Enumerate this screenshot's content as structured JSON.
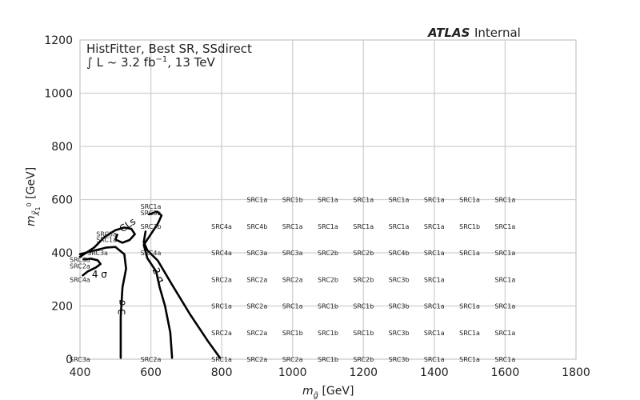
{
  "chart_data": {
    "type": "scatter",
    "title": "",
    "experiment_label": "ATLAS",
    "experiment_status": "Internal",
    "info_line1": "HistFitter, Best SR, SSdirect",
    "info_line2_prefix": "∫ L ~ 3.2 fb",
    "info_line2_exp": "−1",
    "info_line2_suffix": ", 13 TeV",
    "xlabel_main": "m",
    "xlabel_sub": "g̃",
    "xlabel_unit": " [GeV]",
    "ylabel_main": "m",
    "ylabel_sub": "χ̃",
    "ylabel_subsub": "1",
    "ylabel_sup": "0",
    "ylabel_unit": " [GeV]",
    "xlim": [
      400,
      1800
    ],
    "ylim": [
      0,
      1200
    ],
    "x_ticks": [
      400,
      600,
      800,
      1000,
      1200,
      1400,
      1600,
      1800
    ],
    "x_tick_labels": [
      "400",
      "600",
      "800",
      "1000",
      "1200",
      "1400",
      "1600",
      "1800"
    ],
    "y_ticks": [
      0,
      200,
      400,
      600,
      800,
      1000,
      1200
    ],
    "y_tick_labels": [
      "0",
      "200",
      "400",
      "600",
      "800",
      "1000",
      "1200"
    ],
    "grid": true,
    "points": [
      {
        "x": 400,
        "y": 0,
        "label": "SRC3a"
      },
      {
        "x": 600,
        "y": 0,
        "label": "SRC2a"
      },
      {
        "x": 800,
        "y": 0,
        "label": "SRC1a"
      },
      {
        "x": 900,
        "y": 0,
        "label": "SRC2a"
      },
      {
        "x": 1000,
        "y": 0,
        "label": "SRC2a"
      },
      {
        "x": 1100,
        "y": 0,
        "label": "SRC1b"
      },
      {
        "x": 1200,
        "y": 0,
        "label": "SRC2b"
      },
      {
        "x": 1300,
        "y": 0,
        "label": "SRC3b"
      },
      {
        "x": 1400,
        "y": 0,
        "label": "SRC1a"
      },
      {
        "x": 1500,
        "y": 0,
        "label": "SRC1a"
      },
      {
        "x": 1600,
        "y": 0,
        "label": "SRC1a"
      },
      {
        "x": 800,
        "y": 100,
        "label": "SRC2a"
      },
      {
        "x": 900,
        "y": 100,
        "label": "SRC2a"
      },
      {
        "x": 1000,
        "y": 100,
        "label": "SRC1b"
      },
      {
        "x": 1100,
        "y": 100,
        "label": "SRC1b"
      },
      {
        "x": 1200,
        "y": 100,
        "label": "SRC1b"
      },
      {
        "x": 1300,
        "y": 100,
        "label": "SRC3b"
      },
      {
        "x": 1400,
        "y": 100,
        "label": "SRC1a"
      },
      {
        "x": 1500,
        "y": 100,
        "label": "SRC1a"
      },
      {
        "x": 1600,
        "y": 100,
        "label": "SRC1a"
      },
      {
        "x": 800,
        "y": 200,
        "label": "SRC1a"
      },
      {
        "x": 900,
        "y": 200,
        "label": "SRC2a"
      },
      {
        "x": 1000,
        "y": 200,
        "label": "SRC1a"
      },
      {
        "x": 1100,
        "y": 200,
        "label": "SRC1b"
      },
      {
        "x": 1200,
        "y": 200,
        "label": "SRC1b"
      },
      {
        "x": 1300,
        "y": 200,
        "label": "SRC3b"
      },
      {
        "x": 1400,
        "y": 200,
        "label": "SRC1a"
      },
      {
        "x": 1500,
        "y": 200,
        "label": "SRC1a"
      },
      {
        "x": 1600,
        "y": 200,
        "label": "SRC1a"
      },
      {
        "x": 800,
        "y": 300,
        "label": "SRC2a"
      },
      {
        "x": 900,
        "y": 300,
        "label": "SRC2a"
      },
      {
        "x": 1000,
        "y": 300,
        "label": "SRC2a"
      },
      {
        "x": 1100,
        "y": 300,
        "label": "SRC2b"
      },
      {
        "x": 1200,
        "y": 300,
        "label": "SRC2b"
      },
      {
        "x": 1300,
        "y": 300,
        "label": "SRC3b"
      },
      {
        "x": 1400,
        "y": 300,
        "label": "SRC1a"
      },
      {
        "x": 1600,
        "y": 300,
        "label": "SRC1a"
      },
      {
        "x": 400,
        "y": 300,
        "label": "SRC4a"
      },
      {
        "x": 400,
        "y": 350,
        "label": "SRC2a"
      },
      {
        "x": 400,
        "y": 375,
        "label": "SRC3a"
      },
      {
        "x": 450,
        "y": 400,
        "label": "SRC3a"
      },
      {
        "x": 600,
        "y": 400,
        "label": "SRC4a"
      },
      {
        "x": 800,
        "y": 400,
        "label": "SRC4a"
      },
      {
        "x": 900,
        "y": 400,
        "label": "SRC3a"
      },
      {
        "x": 1000,
        "y": 400,
        "label": "SRC3a"
      },
      {
        "x": 1100,
        "y": 400,
        "label": "SRC2b"
      },
      {
        "x": 1200,
        "y": 400,
        "label": "SRC2b"
      },
      {
        "x": 1300,
        "y": 400,
        "label": "SRC4b"
      },
      {
        "x": 1400,
        "y": 400,
        "label": "SRC1a"
      },
      {
        "x": 1500,
        "y": 400,
        "label": "SRC1a"
      },
      {
        "x": 1600,
        "y": 400,
        "label": "SRC1a"
      },
      {
        "x": 475,
        "y": 450,
        "label": "SRC1a"
      },
      {
        "x": 475,
        "y": 470,
        "label": "SRC3a"
      },
      {
        "x": 600,
        "y": 500,
        "label": "SRC3b"
      },
      {
        "x": 800,
        "y": 500,
        "label": "SRC4a"
      },
      {
        "x": 900,
        "y": 500,
        "label": "SRC4b"
      },
      {
        "x": 1000,
        "y": 500,
        "label": "SRC1a"
      },
      {
        "x": 1100,
        "y": 500,
        "label": "SRC1a"
      },
      {
        "x": 1200,
        "y": 500,
        "label": "SRC1a"
      },
      {
        "x": 1300,
        "y": 500,
        "label": "SRC1a"
      },
      {
        "x": 1400,
        "y": 500,
        "label": "SRC1a"
      },
      {
        "x": 1500,
        "y": 500,
        "label": "SRC1b"
      },
      {
        "x": 1600,
        "y": 500,
        "label": "SRC1a"
      },
      {
        "x": 600,
        "y": 550,
        "label": "SRC3a"
      },
      {
        "x": 600,
        "y": 575,
        "label": "SRC1a"
      },
      {
        "x": 900,
        "y": 600,
        "label": "SRC1a"
      },
      {
        "x": 1000,
        "y": 600,
        "label": "SRC1b"
      },
      {
        "x": 1100,
        "y": 600,
        "label": "SRC1a"
      },
      {
        "x": 1200,
        "y": 600,
        "label": "SRC1a"
      },
      {
        "x": 1300,
        "y": 600,
        "label": "SRC1a"
      },
      {
        "x": 1400,
        "y": 600,
        "label": "SRC1a"
      },
      {
        "x": 1500,
        "y": 600,
        "label": "SRC1a"
      },
      {
        "x": 1600,
        "y": 600,
        "label": "SRC1a"
      }
    ],
    "contours": [
      {
        "label": "CLs",
        "points": [
          [
            400,
            385
          ],
          [
            440,
            420
          ],
          [
            470,
            460
          ],
          [
            500,
            485
          ],
          [
            525,
            495
          ],
          [
            545,
            490
          ],
          [
            555,
            470
          ],
          [
            540,
            448
          ],
          [
            520,
            438
          ],
          [
            500,
            450
          ],
          [
            505,
            468
          ]
        ]
      },
      {
        "label": "4 σ",
        "points": [
          [
            408,
            315
          ],
          [
            422,
            330
          ],
          [
            445,
            345
          ],
          [
            458,
            358
          ],
          [
            450,
            372
          ],
          [
            430,
            378
          ],
          [
            410,
            375
          ]
        ]
      },
      {
        "label": "3 σ",
        "points": [
          [
            400,
            395
          ],
          [
            440,
            408
          ],
          [
            475,
            420
          ],
          [
            500,
            422
          ],
          [
            525,
            395
          ],
          [
            530,
            340
          ],
          [
            520,
            270
          ],
          [
            515,
            160
          ],
          [
            515,
            60
          ],
          [
            515,
            5
          ]
        ]
      },
      {
        "label": "2 σ",
        "points": [
          [
            660,
            5
          ],
          [
            655,
            100
          ],
          [
            640,
            200
          ],
          [
            625,
            270
          ],
          [
            615,
            330
          ],
          [
            590,
            380
          ],
          [
            580,
            430
          ],
          [
            600,
            470
          ],
          [
            620,
            510
          ],
          [
            630,
            540
          ],
          [
            618,
            555
          ],
          [
            595,
            545
          ]
        ]
      },
      {
        "label": "",
        "points": [
          [
            795,
            5
          ],
          [
            760,
            70
          ],
          [
            710,
            170
          ],
          [
            660,
            280
          ],
          [
            620,
            370
          ],
          [
            590,
            410
          ],
          [
            580,
            440
          ],
          [
            585,
            480
          ]
        ]
      }
    ],
    "contour_labels": [
      {
        "text": "4 σ",
        "x": 455,
        "y": 318,
        "rotate": 0
      },
      {
        "text": "3 σ",
        "x": 520,
        "y": 195,
        "rotate": -90
      },
      {
        "text": "2 σ",
        "x": 620,
        "y": 315,
        "rotate": 65
      },
      {
        "text": "CLs",
        "x": 535,
        "y": 503,
        "rotate": -35
      }
    ]
  }
}
